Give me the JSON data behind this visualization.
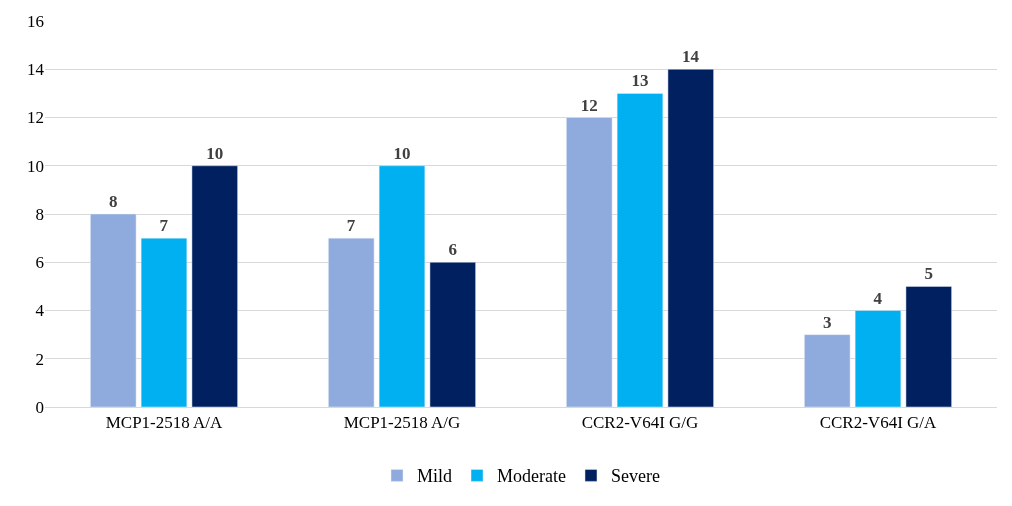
{
  "chart_data": {
    "type": "bar",
    "categories": [
      "MCP1-2518 A/A",
      "MCP1-2518 A/G",
      "CCR2-V64I G/G",
      "CCR2-V64I G/A"
    ],
    "series": [
      {
        "name": "Mild",
        "color": "#8faadc",
        "values": [
          8,
          7,
          12,
          3
        ]
      },
      {
        "name": "Moderate",
        "color": "#00b0f0",
        "values": [
          7,
          10,
          13,
          4
        ]
      },
      {
        "name": "Severe",
        "color": "#002060",
        "values": [
          10,
          6,
          14,
          5
        ]
      }
    ],
    "ylim": [
      0,
      16
    ],
    "yticks": [
      0,
      2,
      4,
      6,
      8,
      10,
      12,
      14,
      16
    ],
    "grid": "y",
    "legend": "bottom",
    "data_labels": true
  }
}
